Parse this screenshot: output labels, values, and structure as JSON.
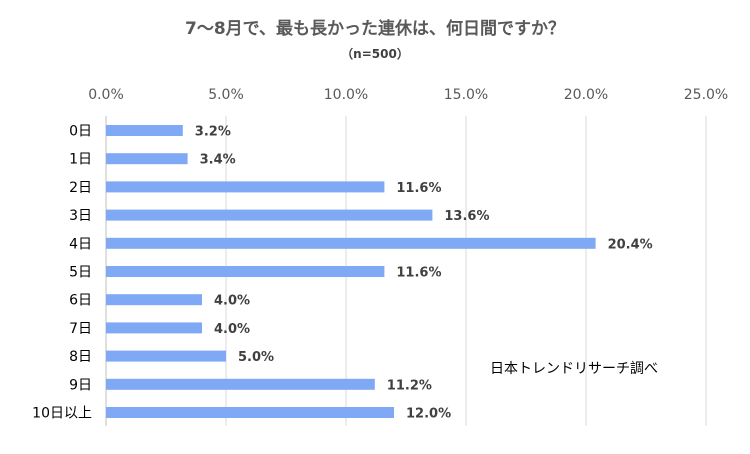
{
  "chart_data": {
    "type": "bar",
    "orientation": "horizontal",
    "title": "7～8月で、最も長かった連休は、何日間ですか？",
    "subtitle": "（n=500）",
    "categories": [
      "0日",
      "1日",
      "2日",
      "3日",
      "4日",
      "5日",
      "6日",
      "7日",
      "8日",
      "9日",
      "10日以上"
    ],
    "values": [
      3.2,
      3.4,
      11.6,
      13.6,
      20.4,
      11.6,
      4.0,
      4.0,
      5.0,
      11.2,
      12.0
    ],
    "data_labels": [
      "3.2%",
      "3.4%",
      "11.6%",
      "13.6%",
      "20.4%",
      "11.6%",
      "4.0%",
      "4.0%",
      "5.0%",
      "11.2%",
      "12.0%"
    ],
    "x_ticks": [
      0,
      5,
      10,
      15,
      20,
      25
    ],
    "x_tick_labels": [
      "0.0%",
      "5.0%",
      "10.0%",
      "15.0%",
      "20.0%",
      "25.0%"
    ],
    "xlim": [
      0,
      25
    ],
    "x_axis_position": "top",
    "grid": true,
    "bar_color": "#7fa8f5",
    "annotation": "日本トレンドリサーチ調べ"
  }
}
